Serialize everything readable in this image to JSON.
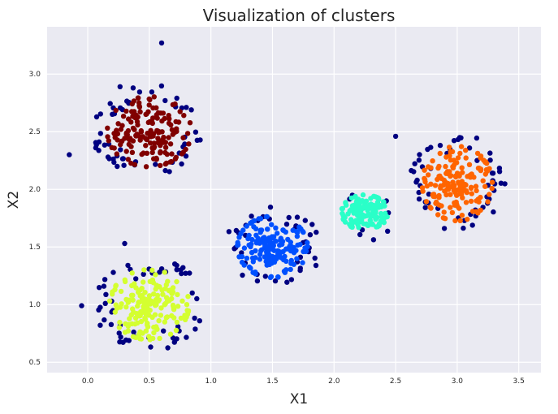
{
  "chart_data": {
    "type": "scatter",
    "title": "Visualization of clusters",
    "xlabel": "X1",
    "ylabel": "X2",
    "xlim": [
      -0.33,
      3.68
    ],
    "ylim": [
      0.41,
      3.41
    ],
    "xticks": [
      0.0,
      0.5,
      1.0,
      1.5,
      2.0,
      2.5,
      3.0,
      3.5
    ],
    "xtick_labels": [
      "0.0",
      "0.5",
      "1.0",
      "1.5",
      "2.0",
      "2.5",
      "3.0",
      "3.5"
    ],
    "yticks": [
      0.5,
      1.0,
      1.5,
      2.0,
      2.5,
      3.0
    ],
    "ytick_labels": [
      "0.5",
      "1.0",
      "1.5",
      "2.0",
      "2.5",
      "3.0"
    ],
    "grid": true,
    "background": "#eaeaf2",
    "noise_color": "#000080",
    "clusters": [
      {
        "name": "cluster-maroon",
        "color": "#800000",
        "center": [
          0.5,
          2.5
        ],
        "core_spread": [
          0.18,
          0.16
        ],
        "core_points": 160,
        "noise_points": 55,
        "noise_spread": [
          0.3,
          0.3
        ]
      },
      {
        "name": "cluster-yellow",
        "color": "#d4ff30",
        "center": [
          0.5,
          1.0
        ],
        "core_spread": [
          0.17,
          0.16
        ],
        "core_points": 170,
        "noise_points": 55,
        "noise_spread": [
          0.3,
          0.26
        ]
      },
      {
        "name": "cluster-blue",
        "color": "#0050ff",
        "center": [
          1.5,
          1.5
        ],
        "core_spread": [
          0.15,
          0.14
        ],
        "core_points": 165,
        "noise_points": 40,
        "noise_spread": [
          0.26,
          0.24
        ]
      },
      {
        "name": "cluster-teal",
        "color": "#2affc8",
        "center": [
          2.25,
          1.8
        ],
        "core_spread": [
          0.1,
          0.08
        ],
        "core_points": 120,
        "noise_points": 8,
        "noise_spread": [
          0.18,
          0.16
        ]
      },
      {
        "name": "cluster-orange",
        "color": "#ff6400",
        "center": [
          3.0,
          2.05
        ],
        "core_spread": [
          0.15,
          0.17
        ],
        "core_points": 165,
        "noise_points": 55,
        "noise_spread": [
          0.26,
          0.28
        ]
      }
    ],
    "outliers": [
      {
        "x": 0.6,
        "y": 3.27
      },
      {
        "x": -0.15,
        "y": 2.3
      },
      {
        "x": 2.5,
        "y": 2.46
      },
      {
        "x": 0.3,
        "y": 1.53
      },
      {
        "x": -0.05,
        "y": 0.99
      }
    ]
  }
}
